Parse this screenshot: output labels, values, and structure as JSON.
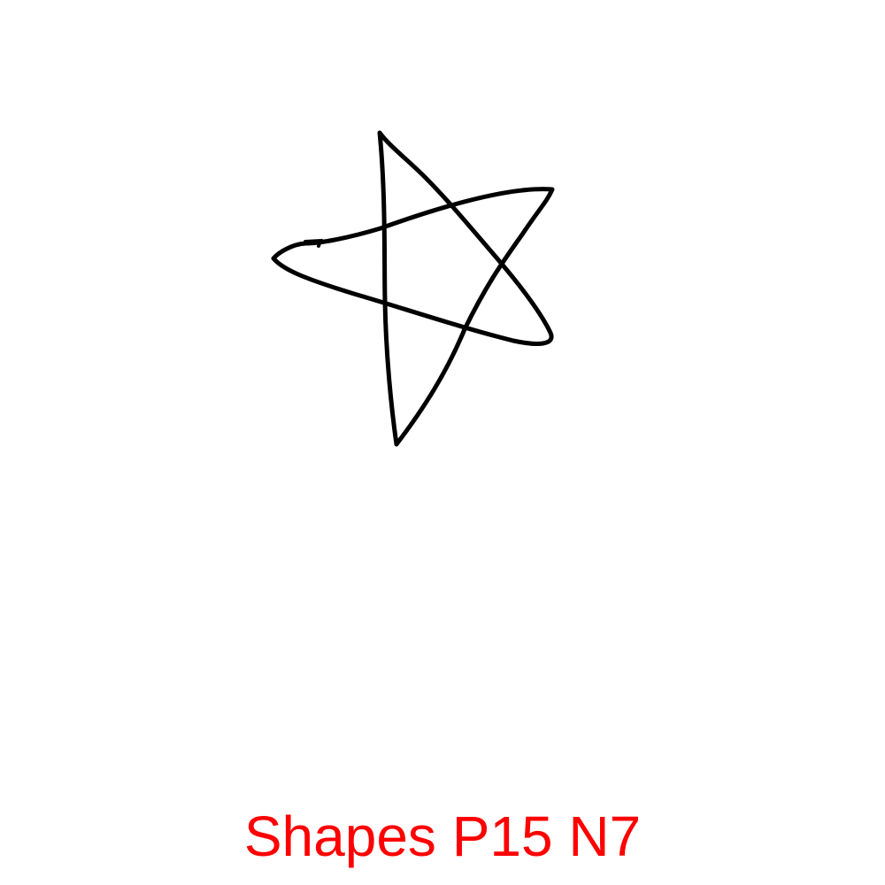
{
  "caption": {
    "text": "Shapes P15 N7",
    "color": "#ff0000"
  },
  "drawing": {
    "shape": "star",
    "stroke_color": "#000000",
    "background_color": "#ffffff"
  }
}
